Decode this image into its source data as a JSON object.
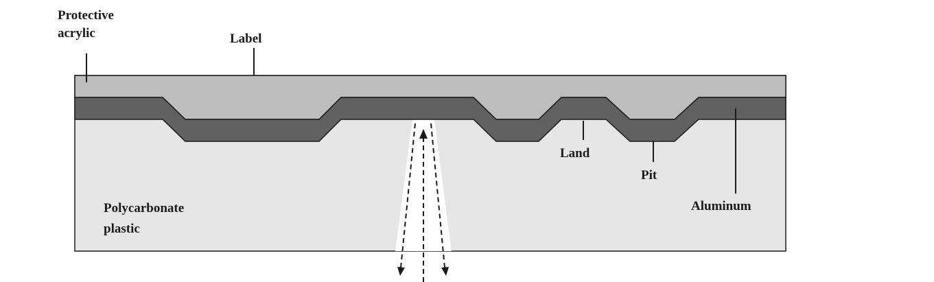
{
  "labels": {
    "protective_acrylic_line1": "Protective",
    "protective_acrylic_line2": "acrylic",
    "label": "Label",
    "land": "Land",
    "pit": "Pit",
    "aluminum": "Aluminum",
    "polycarbonate_line1": "Polycarbonate",
    "polycarbonate_line2": "plastic"
  },
  "colors": {
    "polycarbonate": "#e6e6e6",
    "acrylic_label": "#bdbdbd",
    "aluminum": "#616161",
    "outline": "#1a1a1a",
    "laser_beam": "#ffffff"
  }
}
